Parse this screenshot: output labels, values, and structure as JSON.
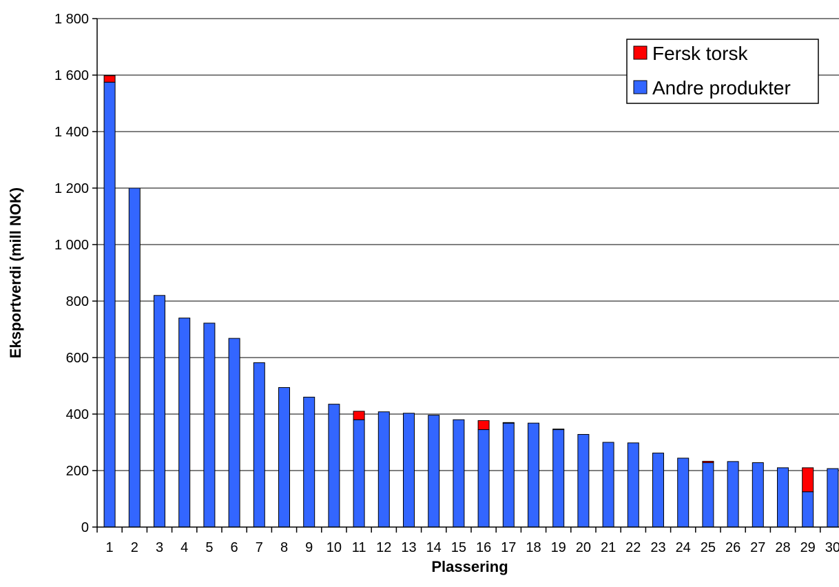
{
  "chart_data": {
    "type": "bar",
    "stacked": true,
    "title": "",
    "xlabel": "Plassering",
    "ylabel": "Eksportverdi (mill NOK)",
    "ylim": [
      0,
      1800
    ],
    "yticks": [
      0,
      200,
      400,
      600,
      800,
      1000,
      1200,
      1400,
      1600,
      1800
    ],
    "ytick_labels": [
      "0",
      "200",
      "400",
      "600",
      "800",
      "1 000",
      "1 200",
      "1 400",
      "1 600",
      "1 800"
    ],
    "grid": true,
    "legend_position": "top-right",
    "categories": [
      "1",
      "2",
      "3",
      "4",
      "5",
      "6",
      "7",
      "8",
      "9",
      "10",
      "11",
      "12",
      "13",
      "14",
      "15",
      "16",
      "17",
      "18",
      "19",
      "20",
      "21",
      "22",
      "23",
      "24",
      "25",
      "26",
      "27",
      "28",
      "29",
      "30"
    ],
    "series": [
      {
        "name": "Andre produkter",
        "color": "#3366ff",
        "values": [
          1575,
          1200,
          820,
          740,
          722,
          668,
          582,
          494,
          460,
          435,
          380,
          408,
          403,
          396,
          380,
          345,
          368,
          368,
          345,
          328,
          300,
          298,
          262,
          244,
          228,
          232,
          228,
          210,
          125,
          207
        ]
      },
      {
        "name": "Fersk torsk",
        "color": "#ff0000",
        "values": [
          23,
          0,
          0,
          0,
          0,
          0,
          0,
          0,
          0,
          0,
          30,
          0,
          0,
          0,
          0,
          32,
          2,
          0,
          2,
          0,
          0,
          0,
          0,
          0,
          5,
          0,
          0,
          0,
          85,
          0
        ]
      }
    ]
  }
}
